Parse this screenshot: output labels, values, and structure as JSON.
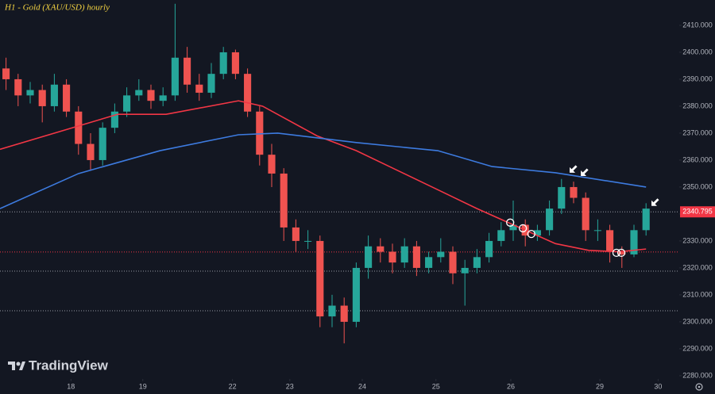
{
  "chart_data": {
    "type": "candlestick",
    "title": "H1 - Gold (XAU/USD) hourly",
    "brand": "TradingView",
    "x": [
      2,
      6,
      10,
      14,
      18,
      22,
      26,
      30,
      34,
      38,
      42,
      46,
      50,
      54,
      58,
      62,
      66,
      70,
      74,
      78,
      82,
      86,
      90,
      94,
      98,
      102,
      106,
      110,
      114,
      118,
      122,
      126,
      130,
      134,
      138,
      142,
      146,
      150,
      154,
      158,
      162,
      166,
      170,
      174,
      178,
      182,
      186,
      190,
      194,
      198,
      202,
      206,
      210,
      214
    ],
    "open": [
      2394,
      2390,
      2384,
      2386,
      2380,
      2388,
      2378,
      2366,
      2360,
      2372,
      2378,
      2384,
      2386,
      2382,
      2384,
      2398,
      2388,
      2385,
      2392,
      2400,
      2392,
      2378,
      2362,
      2355,
      2335,
      2330,
      2330,
      2302,
      2306,
      2300,
      2320,
      2328,
      2326,
      2322,
      2328,
      2320,
      2324,
      2326,
      2318,
      2320,
      2324,
      2330,
      2334,
      2336,
      2332,
      2334,
      2342,
      2350,
      2346,
      2334,
      2334,
      2326,
      2325,
      2334
    ],
    "high": [
      2398,
      2392,
      2389,
      2388,
      2392,
      2390,
      2380,
      2370,
      2374,
      2381,
      2387,
      2390,
      2388,
      2387,
      2418,
      2402,
      2392,
      2396,
      2402,
      2401,
      2394,
      2380,
      2366,
      2357,
      2338,
      2334,
      2332,
      2310,
      2309,
      2322,
      2332,
      2331,
      2329,
      2331,
      2330,
      2326,
      2331,
      2328,
      2323,
      2327,
      2333,
      2337,
      2345,
      2338,
      2336,
      2345,
      2353,
      2352,
      2348,
      2338,
      2336,
      2328,
      2336,
      2344
    ],
    "low": [
      2386,
      2380,
      2381,
      2374,
      2378,
      2376,
      2362,
      2356,
      2358,
      2370,
      2376,
      2382,
      2379,
      2380,
      2382,
      2385,
      2382,
      2383,
      2390,
      2390,
      2376,
      2358,
      2350,
      2330,
      2326,
      2327,
      2298,
      2298,
      2292,
      2298,
      2316,
      2322,
      2318,
      2320,
      2317,
      2318,
      2322,
      2314,
      2306,
      2318,
      2322,
      2328,
      2330,
      2328,
      2330,
      2332,
      2340,
      2344,
      2330,
      2330,
      2322,
      2320,
      2324,
      2332
    ],
    "close": [
      2390,
      2384,
      2386,
      2380,
      2388,
      2378,
      2366,
      2360,
      2372,
      2378,
      2384,
      2386,
      2382,
      2384,
      2398,
      2388,
      2385,
      2392,
      2400,
      2392,
      2378,
      2362,
      2355,
      2335,
      2330,
      2330,
      2302,
      2306,
      2300,
      2320,
      2328,
      2326,
      2322,
      2328,
      2320,
      2324,
      2326,
      2318,
      2320,
      2324,
      2330,
      2334,
      2336,
      2332,
      2334,
      2342,
      2350,
      2346,
      2334,
      2334,
      2326,
      2325,
      2334,
      2342
    ],
    "up_color": "#26a69a",
    "down_color": "#ef5350",
    "lines": [
      {
        "color": "#f23645",
        "x": [
          0,
          39,
          55,
          79,
          87,
          105,
          118,
          132,
          145,
          158,
          171,
          184,
          195,
          205,
          214
        ],
        "values": [
          2364,
          2377,
          2377,
          2382,
          2380,
          2369,
          2363.5,
          2356,
          2349,
          2342,
          2335.5,
          2329,
          2326.5,
          2326,
          2327
        ]
      },
      {
        "color": "#3d7be0",
        "x": [
          0,
          26,
          53,
          79,
          92,
          118,
          145,
          163,
          184,
          214
        ],
        "values": [
          2342,
          2355,
          2363.5,
          2369.4,
          2370,
          2366.5,
          2363.5,
          2357.6,
          2355.3,
          2350
        ]
      }
    ],
    "last_price": 2340.795,
    "last_price_color": "#f23645",
    "levels": [
      {
        "value": 2325.9,
        "color": "#f23645"
      },
      {
        "value": 2318.8,
        "color": "#9598a1"
      },
      {
        "value": 2304.1,
        "color": "#9598a1"
      }
    ],
    "circles": [
      {
        "x": 169,
        "y": 2336.8
      },
      {
        "x": 173.2,
        "y": 2334.7
      },
      {
        "x": 176,
        "y": 2332.6
      },
      {
        "x": 204.2,
        "y": 2325.6
      },
      {
        "x": 205.8,
        "y": 2325.6
      }
    ],
    "arrows": [
      {
        "x": 188.7,
        "y": 2355.3
      },
      {
        "x": 192.4,
        "y": 2354.1
      },
      {
        "x": 215.8,
        "y": 2343
      }
    ],
    "xlim": [
      0,
      225
    ],
    "ylim": [
      2278.8,
      2419.4
    ],
    "xticks": [
      {
        "value": 23.5,
        "label": "18"
      },
      {
        "value": 47.3,
        "label": "19"
      },
      {
        "value": 77,
        "label": "22"
      },
      {
        "value": 96,
        "label": "23"
      },
      {
        "value": 120,
        "label": "24"
      },
      {
        "value": 144.4,
        "label": "25"
      },
      {
        "value": 169.2,
        "label": "26"
      },
      {
        "value": 198.7,
        "label": "29"
      },
      {
        "value": 218,
        "label": "30"
      }
    ],
    "yticks": [
      {
        "value": 2280,
        "label": "2280.000"
      },
      {
        "value": 2290,
        "label": "2290.000"
      },
      {
        "value": 2300,
        "label": "2300.000"
      },
      {
        "value": 2310,
        "label": "2310.000"
      },
      {
        "value": 2320,
        "label": "2320.000"
      },
      {
        "value": 2330,
        "label": "2330.000"
      },
      {
        "value": 2340,
        "label": "2340.000"
      },
      {
        "value": 2350,
        "label": "2350.000"
      },
      {
        "value": 2360,
        "label": "2360.000"
      },
      {
        "value": 2370,
        "label": "2370.000"
      },
      {
        "value": 2380,
        "label": "2380.000"
      },
      {
        "value": 2390,
        "label": "2390.000"
      },
      {
        "value": 2400,
        "label": "2400.000"
      },
      {
        "value": 2410,
        "label": "2410.000"
      }
    ]
  }
}
